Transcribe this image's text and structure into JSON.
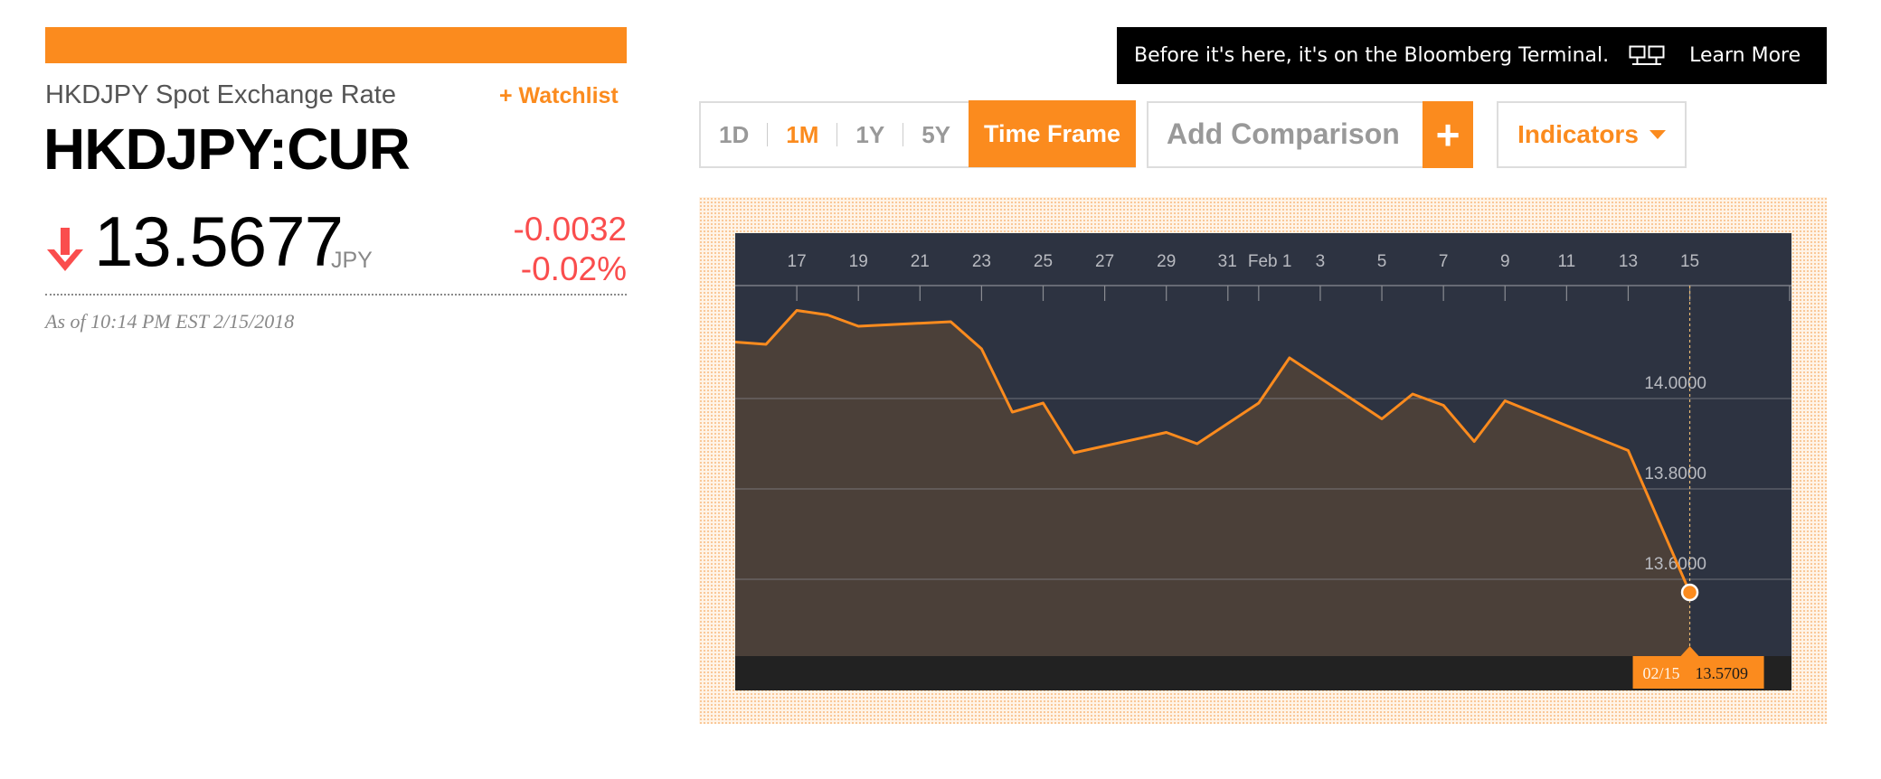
{
  "quote": {
    "name": "HKDJPY Spot Exchange Rate",
    "watchlist_label": "+ Watchlist",
    "ticker": "HKDJPY:CUR",
    "price": "13.5677",
    "currency": "JPY",
    "change": "-0.0032",
    "change_pct": "-0.02%",
    "direction": "down",
    "as_of": "As of 10:14 PM EST 2/15/2018"
  },
  "ad": {
    "text": "Before it's here, it's on the Bloomberg Terminal.",
    "icon": "terminal-monitors-icon",
    "link_label": "Learn More"
  },
  "controls": {
    "ranges": [
      "1D",
      "1M",
      "1Y",
      "5Y"
    ],
    "active_range": "1M",
    "timeframe_label": "Time Frame",
    "comparison_placeholder": "Add Comparison",
    "add_label": "+",
    "indicators_label": "Indicators"
  },
  "colors": {
    "accent": "#fb8b1e",
    "negative": "#fa4d4d",
    "chart_background": "#2d3341",
    "chart_area": "#4b4039",
    "chart_footer": "#222222"
  },
  "chart_data": {
    "type": "area",
    "x_tick_labels": [
      "17",
      "19",
      "21",
      "23",
      "25",
      "27",
      "29",
      "31",
      "Feb 1",
      "3",
      "5",
      "7",
      "9",
      "11",
      "13",
      "15"
    ],
    "y_tick_labels": [
      "14.0000",
      "13.8000",
      "13.6000"
    ],
    "ylim": [
      13.43,
      14.25
    ],
    "series": [
      {
        "values": [
          [
            "2018-01-15",
            14.125
          ],
          [
            "2018-01-16",
            14.12
          ],
          [
            "2018-01-17",
            14.195
          ],
          [
            "2018-01-18",
            14.185
          ],
          [
            "2018-01-19",
            14.16
          ],
          [
            "2018-01-22",
            14.17
          ],
          [
            "2018-01-23",
            14.11
          ],
          [
            "2018-01-24",
            13.97
          ],
          [
            "2018-01-25",
            13.99
          ],
          [
            "2018-01-26",
            13.88
          ],
          [
            "2018-01-29",
            13.925
          ],
          [
            "2018-01-30",
            13.9
          ],
          [
            "2018-01-31",
            13.945
          ],
          [
            "2018-02-01",
            13.99
          ],
          [
            "2018-02-02",
            14.09
          ],
          [
            "2018-02-05",
            13.955
          ],
          [
            "2018-02-06",
            14.01
          ],
          [
            "2018-02-07",
            13.985
          ],
          [
            "2018-02-08",
            13.905
          ],
          [
            "2018-02-09",
            13.995
          ],
          [
            "2018-02-13",
            13.885
          ],
          [
            "2018-02-15",
            13.5709
          ]
        ]
      }
    ],
    "crosshair": {
      "date": "02/15",
      "value": "13.5709"
    }
  }
}
